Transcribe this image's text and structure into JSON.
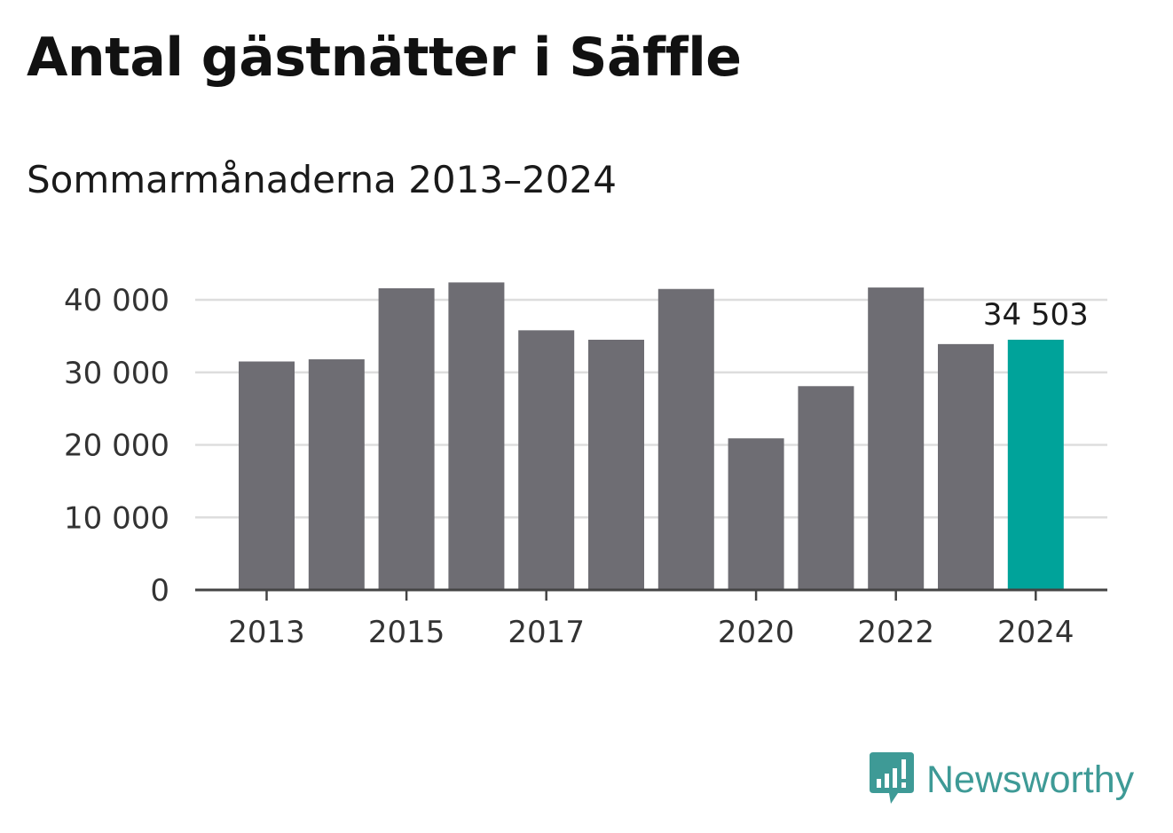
{
  "title": "Antal gästnätter i Säffle",
  "subtitle": "Sommarmånaderna 2013–2024",
  "brand": {
    "name": "Newsworthy",
    "icon": "newsworthy-logo-icon",
    "color": "#3e9a96"
  },
  "chart_data": {
    "type": "bar",
    "title": "Antal gästnätter i Säffle",
    "subtitle": "Sommarmånaderna 2013–2024",
    "categories": [
      "2013",
      "2014",
      "2015",
      "2016",
      "2017",
      "2018",
      "2019",
      "2020",
      "2021",
      "2022",
      "2023",
      "2024"
    ],
    "values": [
      31500,
      31800,
      41600,
      42400,
      35800,
      34500,
      41500,
      20900,
      28100,
      41700,
      33900,
      34503
    ],
    "x_tick_labels": [
      "2013",
      "2015",
      "2017",
      "2020",
      "2022",
      "2024"
    ],
    "y_ticks": [
      0,
      10000,
      20000,
      30000,
      40000
    ],
    "y_tick_labels": [
      "0",
      "10 000",
      "20 000",
      "30 000",
      "40 000"
    ],
    "ylim": [
      0,
      45000
    ],
    "grid": true,
    "colors": {
      "bar": "#6e6d73",
      "highlight": "#00a39a",
      "grid": "#dddddd",
      "axis": "#444444"
    },
    "highlight_index": 11,
    "annotation": {
      "category": "2024",
      "text": "34 503"
    }
  }
}
